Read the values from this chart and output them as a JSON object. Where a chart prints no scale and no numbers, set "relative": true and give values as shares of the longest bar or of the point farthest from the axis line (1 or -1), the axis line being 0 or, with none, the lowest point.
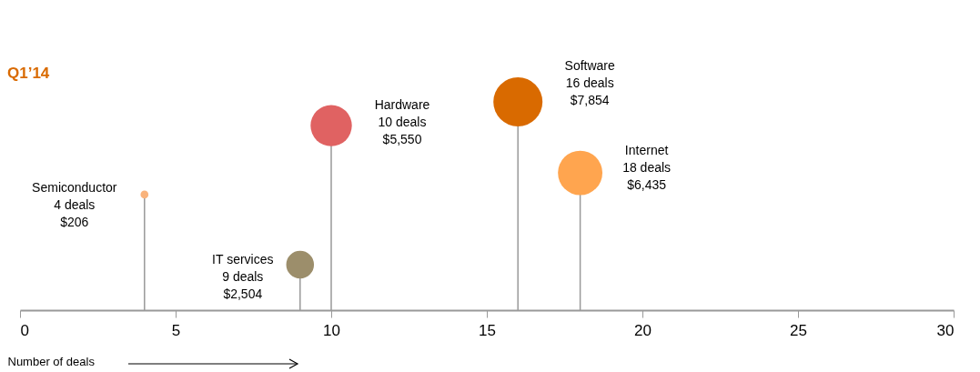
{
  "chart_data": {
    "type": "lollipop",
    "title": "Q1’14",
    "xlabel": "Number of deals",
    "relative": true,
    "x": [
      4,
      9,
      10,
      16,
      18
    ],
    "values": [
      0.555,
      0.218,
      0.886,
      1,
      0.659
    ],
    "sizes": [
      0.026,
      0.319,
      0.707,
      1,
      0.819
    ],
    "colors": [
      "#f9b37c",
      "#9c8e6b",
      "#e06262",
      "#d96a00",
      "#ffa54f"
    ],
    "xlim": [
      0,
      30
    ],
    "xticks": [
      0,
      5,
      10,
      15,
      20,
      25,
      30
    ],
    "legend": false,
    "annotations": [
      "Semiconductor\n4 deals\n$206",
      "IT services\n9 deals\n$2,504",
      "Hardware\n10 deals\n$5,550",
      "Software\n16 deals\n$7,854",
      "Internet\n18 deals\n$6,435"
    ]
  }
}
